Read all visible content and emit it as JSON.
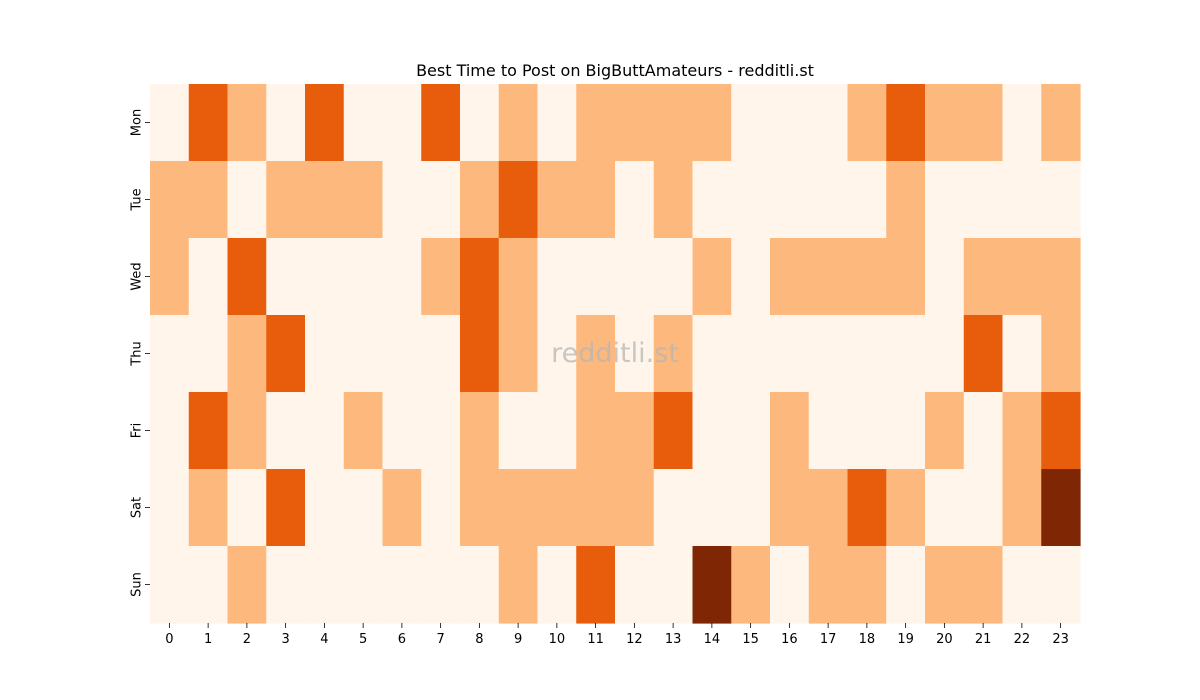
{
  "chart_data": {
    "type": "heatmap",
    "title": "Best Time to Post on BigButtAmateurs - redditli.st",
    "watermark": "redditli.st",
    "x_labels": [
      "0",
      "1",
      "2",
      "3",
      "4",
      "5",
      "6",
      "7",
      "8",
      "9",
      "10",
      "11",
      "12",
      "13",
      "14",
      "15",
      "16",
      "17",
      "18",
      "19",
      "20",
      "21",
      "22",
      "23"
    ],
    "y_labels": [
      "Mon",
      "Tue",
      "Wed",
      "Thu",
      "Fri",
      "Sat",
      "Sun"
    ],
    "values": [
      [
        0,
        2,
        1,
        0,
        2,
        0,
        0,
        2,
        0,
        1,
        0,
        1,
        1,
        1,
        1,
        0,
        0,
        0,
        1,
        2,
        1,
        1,
        0,
        1
      ],
      [
        1,
        1,
        0,
        1,
        1,
        1,
        0,
        0,
        1,
        2,
        1,
        1,
        0,
        1,
        0,
        0,
        0,
        0,
        0,
        1,
        0,
        0,
        0,
        0
      ],
      [
        1,
        0,
        2,
        0,
        0,
        0,
        0,
        1,
        2,
        1,
        0,
        0,
        0,
        0,
        1,
        0,
        1,
        1,
        1,
        1,
        0,
        1,
        1,
        1
      ],
      [
        0,
        0,
        1,
        2,
        0,
        0,
        0,
        0,
        2,
        1,
        0,
        1,
        0,
        1,
        0,
        0,
        0,
        0,
        0,
        0,
        0,
        2,
        0,
        1
      ],
      [
        0,
        2,
        1,
        0,
        0,
        1,
        0,
        0,
        1,
        0,
        0,
        1,
        1,
        2,
        0,
        0,
        1,
        0,
        0,
        0,
        1,
        0,
        1,
        2
      ],
      [
        0,
        1,
        0,
        2,
        0,
        0,
        1,
        0,
        1,
        1,
        1,
        1,
        1,
        0,
        0,
        0,
        1,
        1,
        2,
        1,
        0,
        0,
        1,
        3
      ],
      [
        0,
        0,
        1,
        0,
        0,
        0,
        0,
        0,
        0,
        1,
        0,
        2,
        0,
        0,
        3,
        1,
        0,
        1,
        1,
        0,
        1,
        1,
        0,
        0
      ]
    ],
    "color_scale": [
      "#fff5eb",
      "#fdb97d",
      "#e85d0c",
      "#7f2704"
    ],
    "colormap": "Oranges",
    "colorbar": false,
    "grid": false
  }
}
